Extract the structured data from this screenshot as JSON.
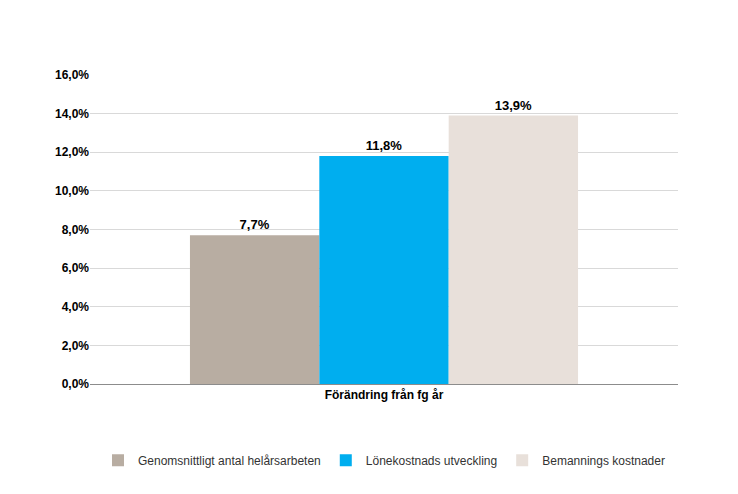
{
  "chart_data": {
    "type": "bar",
    "categories": [
      "Förändring från fg år"
    ],
    "series": [
      {
        "name": "Genomsnittligt antal helårsarbeten",
        "color": "#b8ada2",
        "values": [
          7.7
        ],
        "value_labels": [
          "7,7%"
        ]
      },
      {
        "name": "Lönekostnads utveckling",
        "color": "#00aeef",
        "values": [
          11.8
        ],
        "value_labels": [
          "11,8%"
        ]
      },
      {
        "name": "Bemannings kostnader",
        "color": "#e8e0da",
        "values": [
          13.9
        ],
        "value_labels": [
          "13,9%"
        ]
      }
    ],
    "ylim": [
      0,
      16
    ],
    "yticks": [
      {
        "value": 0,
        "label": "0,0%"
      },
      {
        "value": 2,
        "label": "2,0%"
      },
      {
        "value": 4,
        "label": "4,0%"
      },
      {
        "value": 6,
        "label": "6,0%"
      },
      {
        "value": 8,
        "label": "8,0%"
      },
      {
        "value": 10,
        "label": "10,0%"
      },
      {
        "value": 12,
        "label": "12,0%"
      },
      {
        "value": 14,
        "label": "14,0%"
      },
      {
        "value": 16,
        "label": "16,0%"
      }
    ],
    "grid": true,
    "data_labels": true,
    "legend": "bottom"
  }
}
